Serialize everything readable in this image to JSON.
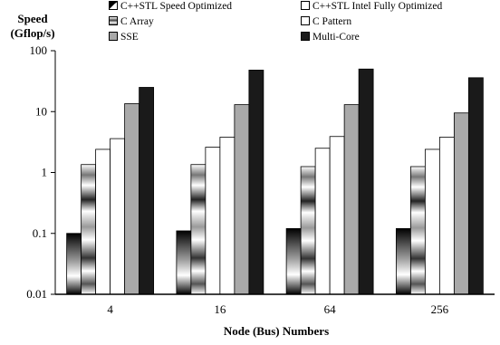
{
  "chart_data": {
    "type": "bar",
    "title": "",
    "ylabel_lines": [
      "Speed",
      "(Gflop/s)"
    ],
    "xlabel": "Node (Bus) Numbers",
    "y_scale": "log",
    "ylim": [
      0.01,
      100
    ],
    "y_ticks": [
      "100",
      "10",
      "1",
      "0.1",
      "0.01"
    ],
    "y_tick_values": [
      100,
      10,
      1,
      0.1,
      0.01
    ],
    "categories": [
      "4",
      "16",
      "64",
      "256"
    ],
    "legend_placement": "top",
    "series": [
      {
        "name": "C++STL Speed Optimized",
        "style": "black-white-gradient",
        "values": [
          0.1,
          0.11,
          0.12,
          0.12
        ]
      },
      {
        "name": "C Array",
        "style": "metallic-gradient",
        "values": [
          1.35,
          1.35,
          1.25,
          1.25
        ]
      },
      {
        "name": "C++STL Intel Fully Optimized",
        "style": "white",
        "values": [
          2.4,
          2.6,
          2.5,
          2.4
        ]
      },
      {
        "name": "C Pattern",
        "style": "white",
        "values": [
          3.6,
          3.8,
          3.9,
          3.8
        ]
      },
      {
        "name": "SSE",
        "style": "gray",
        "values": [
          13.5,
          13,
          13,
          9.5
        ]
      },
      {
        "name": "Multi-Core",
        "style": "black",
        "values": [
          25,
          48,
          50,
          36
        ]
      }
    ],
    "legend": [
      {
        "name": "C++STL Speed Optimized",
        "style": "black-white-gradient"
      },
      {
        "name": "C++STL Intel Fully Optimized",
        "style": "white"
      },
      {
        "name": "C Array",
        "style": "metallic-gradient"
      },
      {
        "name": "C Pattern",
        "style": "white"
      },
      {
        "name": "SSE",
        "style": "gray"
      },
      {
        "name": "Multi-Core",
        "style": "black"
      }
    ],
    "colors": {
      "gray": "#a9a9a9",
      "black": "#1a1a1a",
      "white": "#ffffff",
      "axis": "#000000"
    }
  }
}
